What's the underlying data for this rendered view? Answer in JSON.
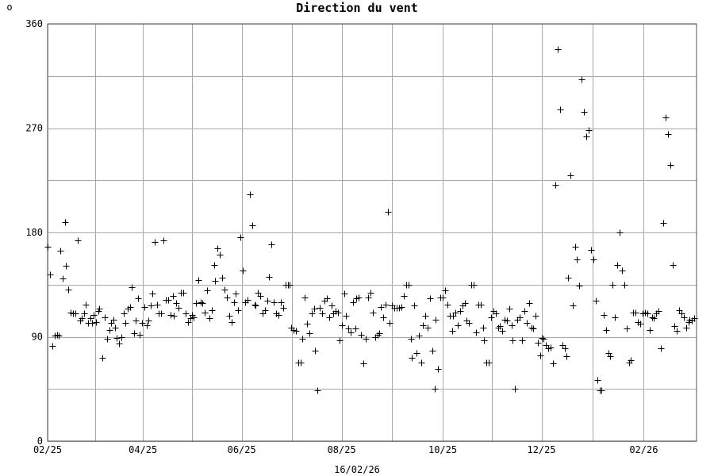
{
  "chart_data": {
    "type": "scatter",
    "title": "Direction du vent",
    "unit_label": "o",
    "xlabel": "16/02/26",
    "ylabel": "",
    "grid": true,
    "legend": "none",
    "x_axis": {
      "unit": "week index",
      "min": 0,
      "max": 56.5
    },
    "ylim": [
      0,
      360
    ],
    "y_ticks": [
      0,
      90,
      180,
      270,
      360
    ],
    "x_ticks": [
      {
        "label": "02/25",
        "x": 0
      },
      {
        "label": "04/25",
        "x": 8.3
      },
      {
        "label": "06/25",
        "x": 16.9
      },
      {
        "label": "08/25",
        "x": 25.6
      },
      {
        "label": "10/25",
        "x": 34.4
      },
      {
        "label": "12/25",
        "x": 43.0
      },
      {
        "label": "02/26",
        "x": 51.9
      }
    ],
    "series": [
      {
        "points": [
          [
            0,
            168
          ],
          [
            0.2,
            144
          ],
          [
            0.4,
            82
          ],
          [
            0.6,
            91
          ],
          [
            0.8,
            92
          ],
          [
            1.0,
            91
          ],
          [
            1.1,
            164
          ],
          [
            1.3,
            140
          ],
          [
            1.5,
            189
          ],
          [
            1.6,
            151
          ],
          [
            1.8,
            131
          ],
          [
            2.0,
            111
          ],
          [
            2.2,
            110
          ],
          [
            2.4,
            110
          ],
          [
            2.6,
            173
          ],
          [
            2.8,
            104
          ],
          [
            3.0,
            106
          ],
          [
            3.2,
            110
          ],
          [
            3.3,
            118
          ],
          [
            3.5,
            102
          ],
          [
            3.7,
            106
          ],
          [
            3.9,
            102
          ],
          [
            4.0,
            109
          ],
          [
            4.2,
            103
          ],
          [
            4.4,
            112
          ],
          [
            4.5,
            114
          ],
          [
            4.8,
            72
          ],
          [
            5.0,
            107
          ],
          [
            5.2,
            88
          ],
          [
            5.4,
            96
          ],
          [
            5.5,
            102
          ],
          [
            5.7,
            105
          ],
          [
            5.9,
            98
          ],
          [
            6.0,
            89
          ],
          [
            6.2,
            84
          ],
          [
            6.4,
            90
          ],
          [
            6.6,
            110
          ],
          [
            6.8,
            102
          ],
          [
            7.0,
            114
          ],
          [
            7.2,
            116
          ],
          [
            7.3,
            133
          ],
          [
            7.5,
            93
          ],
          [
            7.7,
            104
          ],
          [
            7.9,
            123
          ],
          [
            8.0,
            92
          ],
          [
            8.2,
            102
          ],
          [
            8.4,
            116
          ],
          [
            8.6,
            100
          ],
          [
            8.8,
            104
          ],
          [
            9.0,
            117
          ],
          [
            9.1,
            127
          ],
          [
            9.3,
            172
          ],
          [
            9.5,
            118
          ],
          [
            9.7,
            110
          ],
          [
            9.9,
            110
          ],
          [
            10.1,
            173
          ],
          [
            10.3,
            122
          ],
          [
            10.5,
            122
          ],
          [
            10.7,
            109
          ],
          [
            10.9,
            125
          ],
          [
            11.0,
            108
          ],
          [
            11.2,
            119
          ],
          [
            11.4,
            115
          ],
          [
            11.6,
            128
          ],
          [
            11.8,
            128
          ],
          [
            12.0,
            110
          ],
          [
            12.2,
            103
          ],
          [
            12.4,
            106
          ],
          [
            12.6,
            109
          ],
          [
            12.7,
            107
          ],
          [
            12.9,
            119
          ],
          [
            13.1,
            139
          ],
          [
            13.3,
            120
          ],
          [
            13.5,
            119
          ],
          [
            13.7,
            111
          ],
          [
            13.9,
            130
          ],
          [
            14.1,
            106
          ],
          [
            14.3,
            113
          ],
          [
            14.5,
            152
          ],
          [
            14.6,
            138
          ],
          [
            14.8,
            166
          ],
          [
            15.0,
            161
          ],
          [
            15.2,
            141
          ],
          [
            15.4,
            131
          ],
          [
            15.6,
            124
          ],
          [
            15.8,
            108
          ],
          [
            16.0,
            103
          ],
          [
            16.2,
            120
          ],
          [
            16.4,
            127
          ],
          [
            16.6,
            113
          ],
          [
            16.8,
            176
          ],
          [
            17.0,
            147
          ],
          [
            17.2,
            120
          ],
          [
            17.4,
            122
          ],
          [
            17.6,
            213
          ],
          [
            17.8,
            186
          ],
          [
            18.0,
            118
          ],
          [
            18.1,
            117
          ],
          [
            18.3,
            128
          ],
          [
            18.5,
            125
          ],
          [
            18.7,
            110
          ],
          [
            18.9,
            113
          ],
          [
            19.1,
            121
          ],
          [
            19.3,
            142
          ],
          [
            19.5,
            170
          ],
          [
            19.7,
            120
          ],
          [
            19.9,
            110
          ],
          [
            20.1,
            109
          ],
          [
            20.3,
            120
          ],
          [
            20.5,
            115
          ],
          [
            20.7,
            135
          ],
          [
            20.9,
            135
          ],
          [
            21.1,
            135
          ],
          [
            21.2,
            98
          ],
          [
            21.4,
            96
          ],
          [
            21.6,
            95
          ],
          [
            21.8,
            68
          ],
          [
            22.0,
            68
          ],
          [
            22.2,
            88
          ],
          [
            22.4,
            124
          ],
          [
            22.6,
            101
          ],
          [
            22.8,
            93
          ],
          [
            23.0,
            110
          ],
          [
            23.2,
            114
          ],
          [
            23.3,
            78
          ],
          [
            23.5,
            44
          ],
          [
            23.7,
            115
          ],
          [
            23.9,
            110
          ],
          [
            24.1,
            121
          ],
          [
            24.3,
            123
          ],
          [
            24.5,
            107
          ],
          [
            24.7,
            117
          ],
          [
            24.9,
            110
          ],
          [
            25.1,
            112
          ],
          [
            25.3,
            111
          ],
          [
            25.4,
            87
          ],
          [
            25.6,
            100
          ],
          [
            25.8,
            127
          ],
          [
            26.0,
            108
          ],
          [
            26.2,
            97
          ],
          [
            26.4,
            94
          ],
          [
            26.6,
            120
          ],
          [
            26.8,
            97
          ],
          [
            26.9,
            123
          ],
          [
            27.1,
            124
          ],
          [
            27.3,
            92
          ],
          [
            27.5,
            67
          ],
          [
            27.7,
            88
          ],
          [
            27.9,
            124
          ],
          [
            28.1,
            128
          ],
          [
            28.3,
            111
          ],
          [
            28.5,
            90
          ],
          [
            28.7,
            92
          ],
          [
            28.9,
            93
          ],
          [
            29.0,
            116
          ],
          [
            29.2,
            107
          ],
          [
            29.4,
            118
          ],
          [
            29.6,
            198
          ],
          [
            29.8,
            102
          ],
          [
            30.0,
            117
          ],
          [
            30.2,
            115
          ],
          [
            30.4,
            115
          ],
          [
            30.6,
            115
          ],
          [
            30.8,
            116
          ],
          [
            31.0,
            125
          ],
          [
            31.2,
            135
          ],
          [
            31.4,
            135
          ],
          [
            31.6,
            88
          ],
          [
            31.7,
            72
          ],
          [
            31.9,
            117
          ],
          [
            32.1,
            76
          ],
          [
            32.3,
            91
          ],
          [
            32.5,
            68
          ],
          [
            32.7,
            100
          ],
          [
            32.9,
            108
          ],
          [
            33.1,
            98
          ],
          [
            33.3,
            123
          ],
          [
            33.5,
            78
          ],
          [
            33.7,
            45
          ],
          [
            33.8,
            105
          ],
          [
            34.0,
            62
          ],
          [
            34.2,
            124
          ],
          [
            34.4,
            124
          ],
          [
            34.6,
            130
          ],
          [
            34.8,
            118
          ],
          [
            35.0,
            108
          ],
          [
            35.2,
            95
          ],
          [
            35.3,
            108
          ],
          [
            35.5,
            111
          ],
          [
            35.7,
            100
          ],
          [
            35.9,
            112
          ],
          [
            36.1,
            117
          ],
          [
            36.3,
            119
          ],
          [
            36.5,
            104
          ],
          [
            36.7,
            102
          ],
          [
            36.9,
            135
          ],
          [
            37.1,
            135
          ],
          [
            37.3,
            94
          ],
          [
            37.5,
            118
          ],
          [
            37.7,
            118
          ],
          [
            37.9,
            98
          ],
          [
            38.0,
            87
          ],
          [
            38.2,
            68
          ],
          [
            38.4,
            68
          ],
          [
            38.6,
            107
          ],
          [
            38.8,
            112
          ],
          [
            39.0,
            110
          ],
          [
            39.2,
            98
          ],
          [
            39.4,
            99
          ],
          [
            39.6,
            95
          ],
          [
            39.8,
            105
          ],
          [
            40.0,
            104
          ],
          [
            40.2,
            114
          ],
          [
            40.4,
            100
          ],
          [
            40.5,
            87
          ],
          [
            40.7,
            45
          ],
          [
            40.9,
            105
          ],
          [
            41.1,
            107
          ],
          [
            41.3,
            87
          ],
          [
            41.5,
            112
          ],
          [
            41.7,
            102
          ],
          [
            41.9,
            119
          ],
          [
            42.1,
            98
          ],
          [
            42.3,
            97
          ],
          [
            42.5,
            108
          ],
          [
            42.7,
            85
          ],
          [
            42.9,
            74
          ],
          [
            43.0,
            89
          ],
          [
            43.2,
            88
          ],
          [
            43.4,
            83
          ],
          [
            43.6,
            80
          ],
          [
            43.8,
            81
          ],
          [
            44.0,
            67
          ],
          [
            44.2,
            221
          ],
          [
            44.4,
            338
          ],
          [
            44.6,
            286
          ],
          [
            44.8,
            83
          ],
          [
            45.0,
            80
          ],
          [
            45.2,
            73
          ],
          [
            45.3,
            141
          ],
          [
            45.5,
            229
          ],
          [
            45.7,
            117
          ],
          [
            45.9,
            168
          ],
          [
            46.1,
            157
          ],
          [
            46.3,
            134
          ],
          [
            46.5,
            312
          ],
          [
            46.7,
            284
          ],
          [
            46.9,
            263
          ],
          [
            47.1,
            268
          ],
          [
            47.3,
            165
          ],
          [
            47.5,
            157
          ],
          [
            47.7,
            121
          ],
          [
            47.9,
            53
          ],
          [
            48.1,
            44
          ],
          [
            48.2,
            44
          ],
          [
            48.4,
            109
          ],
          [
            48.6,
            96
          ],
          [
            48.8,
            76
          ],
          [
            49.0,
            73
          ],
          [
            49.2,
            135
          ],
          [
            49.4,
            107
          ],
          [
            49.6,
            152
          ],
          [
            49.8,
            180
          ],
          [
            50.0,
            147
          ],
          [
            50.2,
            135
          ],
          [
            50.4,
            97
          ],
          [
            50.6,
            68
          ],
          [
            50.8,
            70
          ],
          [
            51.0,
            111
          ],
          [
            51.2,
            111
          ],
          [
            51.4,
            103
          ],
          [
            51.6,
            101
          ],
          [
            51.8,
            110
          ],
          [
            52.0,
            111
          ],
          [
            52.2,
            110
          ],
          [
            52.4,
            96
          ],
          [
            52.6,
            107
          ],
          [
            52.8,
            106
          ],
          [
            53.0,
            110
          ],
          [
            53.2,
            112
          ],
          [
            53.4,
            80
          ],
          [
            53.6,
            188
          ],
          [
            53.8,
            279
          ],
          [
            54.0,
            265
          ],
          [
            54.2,
            238
          ],
          [
            54.4,
            152
          ],
          [
            54.6,
            99
          ],
          [
            54.8,
            95
          ],
          [
            55.0,
            113
          ],
          [
            55.2,
            110
          ],
          [
            55.4,
            107
          ],
          [
            55.6,
            98
          ],
          [
            55.8,
            103
          ],
          [
            55.9,
            105
          ],
          [
            56.1,
            104
          ],
          [
            56.3,
            106
          ]
        ]
      }
    ]
  }
}
